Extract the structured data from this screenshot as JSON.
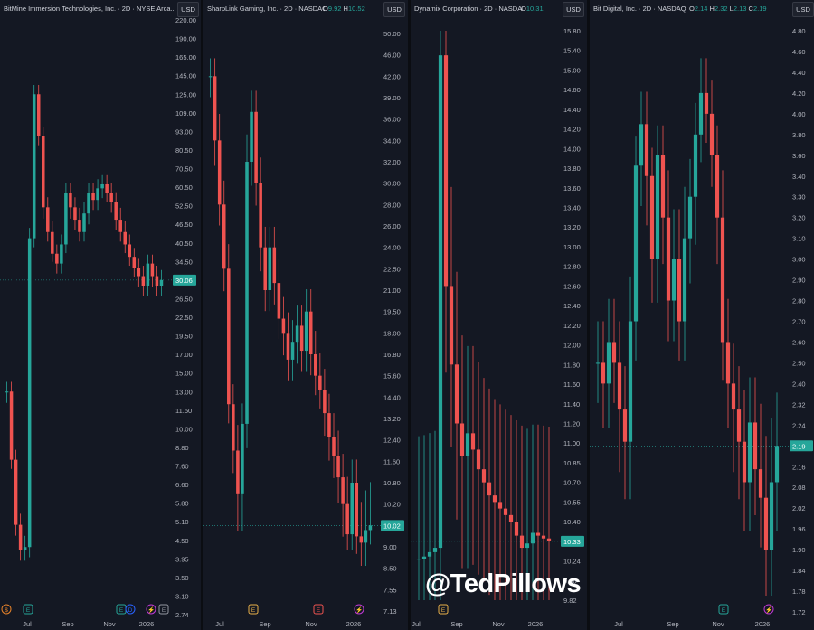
{
  "watermark": "@TedPillows",
  "colors": {
    "up": "#26a69a",
    "down": "#ef5350",
    "bg": "#141823",
    "axis_text": "#b2b5be",
    "grid_line": "#26a69a"
  },
  "chart_data": [
    {
      "type": "candlestick",
      "title": "BitMine Immersion Technologies, Inc. · 2D · NYSE Arca...",
      "currency": "USD",
      "last_price_label": "30.06",
      "y_ticks": [
        "220.00",
        "190.00",
        "165.00",
        "145.00",
        "125.00",
        "109.00",
        "93.00",
        "80.50",
        "70.50",
        "60.50",
        "52.50",
        "46.50",
        "40.50",
        "34.50",
        "30.06",
        "26.50",
        "22.50",
        "19.50",
        "17.00",
        "15.00",
        "13.00",
        "11.50",
        "10.00",
        "8.80",
        "7.60",
        "6.60",
        "5.80",
        "5.10",
        "4.50",
        "3.95",
        "3.50",
        "3.10",
        "2.74"
      ],
      "x_ticks": [
        "Jul",
        "Sep",
        "Nov",
        "2026"
      ],
      "events": [
        {
          "label": "$",
          "color": "#e8832a",
          "shape": "round"
        },
        {
          "label": "E",
          "color": "#26a69a",
          "shape": "square"
        },
        {
          "label": "E",
          "color": "#26a69a",
          "shape": "square"
        },
        {
          "label": "D",
          "color": "#2962ff",
          "shape": "round"
        },
        {
          "label": "⚡",
          "color": "#c039d6",
          "shape": "round"
        },
        {
          "label": "E",
          "color": "#9598a1",
          "shape": "square"
        }
      ],
      "series_close": [
        {
          "x": "Jun",
          "v": 13.0
        },
        {
          "x": "Jun",
          "v": 8.0
        },
        {
          "x": "Jun",
          "v": 5.0
        },
        {
          "x": "Jun",
          "v": 4.2
        },
        {
          "x": "Jul",
          "v": 4.3
        },
        {
          "x": "Jul",
          "v": 42.0
        },
        {
          "x": "Jul",
          "v": 125.0
        },
        {
          "x": "Jul",
          "v": 90.0
        },
        {
          "x": "Jul",
          "v": 52.0
        },
        {
          "x": "Jul",
          "v": 44.0
        },
        {
          "x": "Jul",
          "v": 37.0
        },
        {
          "x": "Aug",
          "v": 34.0
        },
        {
          "x": "Aug",
          "v": 40.0
        },
        {
          "x": "Aug",
          "v": 58.0
        },
        {
          "x": "Aug",
          "v": 52.0
        },
        {
          "x": "Aug",
          "v": 48.0
        },
        {
          "x": "Aug",
          "v": 44.0
        },
        {
          "x": "Aug",
          "v": 50.0
        },
        {
          "x": "Sep",
          "v": 58.0
        },
        {
          "x": "Sep",
          "v": 55.0
        },
        {
          "x": "Sep",
          "v": 60.0
        },
        {
          "x": "Sep",
          "v": 62.0
        },
        {
          "x": "Sep",
          "v": 58.0
        },
        {
          "x": "Oct",
          "v": 54.0
        },
        {
          "x": "Oct",
          "v": 48.0
        },
        {
          "x": "Oct",
          "v": 44.0
        },
        {
          "x": "Oct",
          "v": 40.0
        },
        {
          "x": "Oct",
          "v": 36.0
        },
        {
          "x": "Nov",
          "v": 33.0
        },
        {
          "x": "Nov",
          "v": 31.0
        },
        {
          "x": "Nov",
          "v": 29.0
        },
        {
          "x": "Nov",
          "v": 34.0
        },
        {
          "x": "Dec",
          "v": 31.0
        },
        {
          "x": "Dec",
          "v": 29.0
        },
        {
          "x": "Dec",
          "v": 30.06
        }
      ]
    },
    {
      "type": "candlestick",
      "title": "SharpLink Gaming, Inc. · 2D · NASDAQ",
      "currency": "USD",
      "ohlc": {
        "o_label": "O",
        "o": "9.92",
        "h_label": "H",
        "h": "10.52"
      },
      "last_price_label": "10.02",
      "y_ticks": [
        "50.00",
        "46.00",
        "42.00",
        "39.00",
        "36.00",
        "34.00",
        "32.00",
        "30.00",
        "28.00",
        "26.00",
        "24.00",
        "22.50",
        "21.00",
        "19.50",
        "18.00",
        "16.80",
        "15.60",
        "14.40",
        "13.20",
        "12.40",
        "11.60",
        "10.80",
        "10.20",
        "10.02",
        "9.00",
        "8.50",
        "7.55",
        "7.13"
      ],
      "x_ticks": [
        "Jul",
        "Sep",
        "Nov",
        "2026"
      ],
      "events": [
        {
          "label": "E",
          "color": "#e8b04a",
          "shape": "square"
        },
        {
          "label": "E",
          "color": "#ef5350",
          "shape": "square"
        },
        {
          "label": "⚡",
          "color": "#c039d6",
          "shape": "round"
        }
      ],
      "series_close": [
        {
          "x": "Jun",
          "v": 42.0
        },
        {
          "x": "Jun",
          "v": 34.0
        },
        {
          "x": "Jun",
          "v": 28.0
        },
        {
          "x": "Jun",
          "v": 22.5
        },
        {
          "x": "Jun",
          "v": 14.0
        },
        {
          "x": "Jul",
          "v": 12.0
        },
        {
          "x": "Jul",
          "v": 10.5
        },
        {
          "x": "Jul",
          "v": 13.0
        },
        {
          "x": "Jul",
          "v": 32.0
        },
        {
          "x": "Jul",
          "v": 37.0
        },
        {
          "x": "Jul",
          "v": 30.0
        },
        {
          "x": "Jul",
          "v": 24.0
        },
        {
          "x": "Aug",
          "v": 21.0
        },
        {
          "x": "Aug",
          "v": 24.0
        },
        {
          "x": "Aug",
          "v": 21.5
        },
        {
          "x": "Aug",
          "v": 19.0
        },
        {
          "x": "Aug",
          "v": 18.0
        },
        {
          "x": "Aug",
          "v": 16.5
        },
        {
          "x": "Sep",
          "v": 17.5
        },
        {
          "x": "Sep",
          "v": 18.5
        },
        {
          "x": "Sep",
          "v": 17.0
        },
        {
          "x": "Sep",
          "v": 19.5
        },
        {
          "x": "Sep",
          "v": 16.8
        },
        {
          "x": "Oct",
          "v": 15.6
        },
        {
          "x": "Oct",
          "v": 14.8
        },
        {
          "x": "Oct",
          "v": 13.5
        },
        {
          "x": "Oct",
          "v": 12.5
        },
        {
          "x": "Oct",
          "v": 11.8
        },
        {
          "x": "Nov",
          "v": 11.0
        },
        {
          "x": "Nov",
          "v": 10.2
        },
        {
          "x": "Nov",
          "v": 9.6
        },
        {
          "x": "Nov",
          "v": 10.8
        },
        {
          "x": "Dec",
          "v": 9.5
        },
        {
          "x": "Dec",
          "v": 9.2
        },
        {
          "x": "Dec",
          "v": 9.8
        },
        {
          "x": "Dec",
          "v": 10.02
        }
      ]
    },
    {
      "type": "candlestick",
      "title": "Dynamix Corporation · 2D · NASDAQ",
      "currency": "USD",
      "ohlc": {
        "o_label": "O",
        "o": "10.31"
      },
      "last_price_label": "10.33",
      "y_ticks": [
        "15.80",
        "15.40",
        "15.00",
        "14.60",
        "14.40",
        "14.20",
        "14.00",
        "13.80",
        "13.60",
        "13.40",
        "13.20",
        "13.00",
        "12.80",
        "12.60",
        "12.40",
        "12.20",
        "12.00",
        "11.80",
        "11.60",
        "11.40",
        "11.20",
        "11.00",
        "10.85",
        "10.70",
        "10.55",
        "10.40",
        "10.33",
        "10.24",
        "9.96",
        "9.82"
      ],
      "x_ticks": [
        "Jul",
        "Sep",
        "Nov",
        "2026"
      ],
      "events": [
        {
          "label": "E",
          "color": "#e8b04a",
          "shape": "square"
        }
      ],
      "series_close": [
        {
          "x": "Jul",
          "v": 10.25
        },
        {
          "x": "Jul",
          "v": 10.26
        },
        {
          "x": "Jul",
          "v": 10.28
        },
        {
          "x": "Jul",
          "v": 10.3
        },
        {
          "x": "Jul",
          "v": 15.3
        },
        {
          "x": "Aug",
          "v": 12.6
        },
        {
          "x": "Aug",
          "v": 11.8
        },
        {
          "x": "Aug",
          "v": 11.2
        },
        {
          "x": "Aug",
          "v": 10.9
        },
        {
          "x": "Aug",
          "v": 11.1
        },
        {
          "x": "Sep",
          "v": 10.95
        },
        {
          "x": "Sep",
          "v": 10.8
        },
        {
          "x": "Sep",
          "v": 10.7
        },
        {
          "x": "Sep",
          "v": 10.6
        },
        {
          "x": "Oct",
          "v": 10.55
        },
        {
          "x": "Oct",
          "v": 10.5
        },
        {
          "x": "Oct",
          "v": 10.45
        },
        {
          "x": "Oct",
          "v": 10.4
        },
        {
          "x": "Nov",
          "v": 10.35
        },
        {
          "x": "Nov",
          "v": 10.3
        },
        {
          "x": "Nov",
          "v": 10.32
        },
        {
          "x": "Nov",
          "v": 10.36
        },
        {
          "x": "Dec",
          "v": 10.35
        },
        {
          "x": "Dec",
          "v": 10.34
        },
        {
          "x": "Dec",
          "v": 10.33
        }
      ]
    },
    {
      "type": "candlestick",
      "title": "Bit Digital, Inc. · 2D · NASDAQ",
      "currency": "USD",
      "ohlc": {
        "o_label": "O",
        "o": "2.14",
        "h_label": "H",
        "h": "2.32",
        "l_label": "L",
        "l": "2.13",
        "c_label": "C",
        "c": "2.19"
      },
      "last_price_label": "2.19",
      "y_ticks": [
        "4.80",
        "4.60",
        "4.40",
        "4.20",
        "4.00",
        "3.80",
        "3.60",
        "3.40",
        "3.30",
        "3.20",
        "3.10",
        "3.00",
        "2.90",
        "2.80",
        "2.70",
        "2.60",
        "2.50",
        "2.40",
        "2.32",
        "2.24",
        "2.19",
        "2.16",
        "2.08",
        "2.02",
        "1.96",
        "1.90",
        "1.84",
        "1.78",
        "1.72"
      ],
      "x_ticks": [
        "Jul",
        "Sep",
        "Nov",
        "2026"
      ],
      "events": [
        {
          "label": "E",
          "color": "#26a69a",
          "shape": "square"
        },
        {
          "label": "⚡",
          "color": "#c039d6",
          "shape": "round"
        }
      ],
      "series_close": [
        {
          "x": "Jun",
          "v": 2.5
        },
        {
          "x": "Jun",
          "v": 2.4
        },
        {
          "x": "Jun",
          "v": 2.6
        },
        {
          "x": "Jun",
          "v": 2.5
        },
        {
          "x": "Jun",
          "v": 2.3
        },
        {
          "x": "Jul",
          "v": 2.2
        },
        {
          "x": "Jul",
          "v": 2.7
        },
        {
          "x": "Jul",
          "v": 3.5
        },
        {
          "x": "Jul",
          "v": 3.9
        },
        {
          "x": "Jul",
          "v": 3.4
        },
        {
          "x": "Jul",
          "v": 3.0
        },
        {
          "x": "Aug",
          "v": 3.6
        },
        {
          "x": "Aug",
          "v": 3.2
        },
        {
          "x": "Aug",
          "v": 2.8
        },
        {
          "x": "Aug",
          "v": 3.0
        },
        {
          "x": "Aug",
          "v": 2.7
        },
        {
          "x": "Sep",
          "v": 3.1
        },
        {
          "x": "Sep",
          "v": 3.3
        },
        {
          "x": "Sep",
          "v": 3.8
        },
        {
          "x": "Sep",
          "v": 4.2
        },
        {
          "x": "Sep",
          "v": 4.0
        },
        {
          "x": "Oct",
          "v": 3.6
        },
        {
          "x": "Oct",
          "v": 3.2
        },
        {
          "x": "Oct",
          "v": 2.6
        },
        {
          "x": "Oct",
          "v": 2.4
        },
        {
          "x": "Oct",
          "v": 2.3
        },
        {
          "x": "Nov",
          "v": 2.2
        },
        {
          "x": "Nov",
          "v": 2.1
        },
        {
          "x": "Nov",
          "v": 2.25
        },
        {
          "x": "Nov",
          "v": 2.15
        },
        {
          "x": "Dec",
          "v": 2.05
        },
        {
          "x": "Dec",
          "v": 1.9
        },
        {
          "x": "Dec",
          "v": 2.1
        },
        {
          "x": "Dec",
          "v": 2.19
        }
      ]
    }
  ]
}
